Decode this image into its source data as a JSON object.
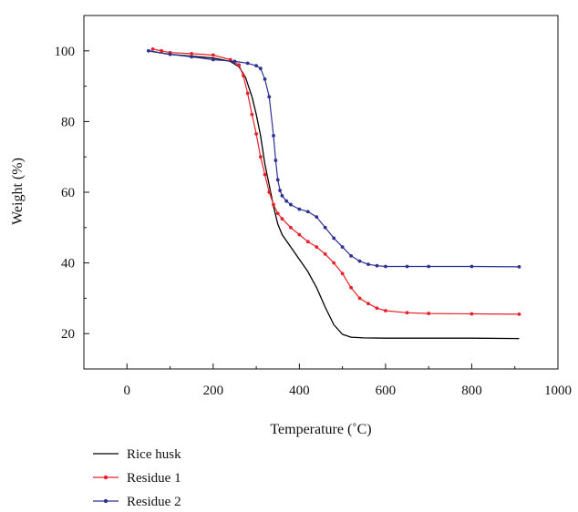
{
  "chart_data": {
    "type": "line",
    "title": "",
    "xlabel": "Temperature (˚C)",
    "ylabel": "Weight (%)",
    "xlim": [
      -100,
      1000
    ],
    "ylim": [
      10,
      110
    ],
    "xticks": [
      0,
      200,
      400,
      600,
      800,
      1000
    ],
    "yticks": [
      20,
      40,
      60,
      80,
      100
    ],
    "xtick_labels": [
      "0",
      "200",
      "400",
      "600",
      "800",
      "1000"
    ],
    "ytick_labels": [
      "20",
      "40",
      "60",
      "80",
      "100"
    ],
    "grid": false,
    "legend_position": "bottom-left below plot",
    "series": [
      {
        "name": "Rice husk",
        "color": "#000000",
        "marker": "none",
        "x": [
          50,
          100,
          150,
          200,
          240,
          260,
          275,
          290,
          300,
          310,
          320,
          330,
          340,
          350,
          360,
          380,
          400,
          420,
          440,
          460,
          480,
          500,
          520,
          550,
          600,
          700,
          800,
          910
        ],
        "y": [
          100,
          99.0,
          98.5,
          98.0,
          97.0,
          95.5,
          92.5,
          87.0,
          82.0,
          76.0,
          68.0,
          62.0,
          56.0,
          51.0,
          48.0,
          44.5,
          41.0,
          37.5,
          33.0,
          27.5,
          22.5,
          19.8,
          19.0,
          18.8,
          18.7,
          18.7,
          18.7,
          18.6
        ]
      },
      {
        "name": "Residue 1",
        "color": "#e8202a",
        "marker": "circle",
        "x": [
          60,
          80,
          100,
          150,
          200,
          240,
          260,
          270,
          280,
          290,
          300,
          310,
          320,
          330,
          340,
          350,
          360,
          380,
          400,
          420,
          440,
          460,
          480,
          500,
          520,
          540,
          560,
          580,
          600,
          650,
          700,
          800,
          910
        ],
        "y": [
          100.5,
          100,
          99.5,
          99.2,
          98.8,
          97.5,
          96.0,
          93.0,
          88.0,
          82.0,
          76.5,
          70.0,
          65.0,
          60.0,
          56.5,
          54.0,
          52.5,
          50.0,
          48.0,
          46.0,
          44.5,
          42.5,
          40.0,
          37.0,
          33.0,
          30.0,
          28.5,
          27.2,
          26.5,
          25.9,
          25.7,
          25.6,
          25.5
        ]
      },
      {
        "name": "Residue 2",
        "color": "#2e3192",
        "marker": "circle",
        "x": [
          50,
          100,
          150,
          200,
          250,
          280,
          300,
          310,
          320,
          330,
          340,
          345,
          350,
          355,
          360,
          370,
          380,
          400,
          420,
          440,
          460,
          480,
          500,
          520,
          540,
          560,
          580,
          600,
          650,
          700,
          800,
          910
        ],
        "y": [
          100,
          99.0,
          98.3,
          97.5,
          97.0,
          96.5,
          95.8,
          95.0,
          92.0,
          87.0,
          76.0,
          69.0,
          63.5,
          60.5,
          59.0,
          57.5,
          56.5,
          55.2,
          54.5,
          53.0,
          50.0,
          47.0,
          44.5,
          42.0,
          40.5,
          39.6,
          39.2,
          39.0,
          39.0,
          39.0,
          39.0,
          38.9
        ]
      }
    ]
  }
}
